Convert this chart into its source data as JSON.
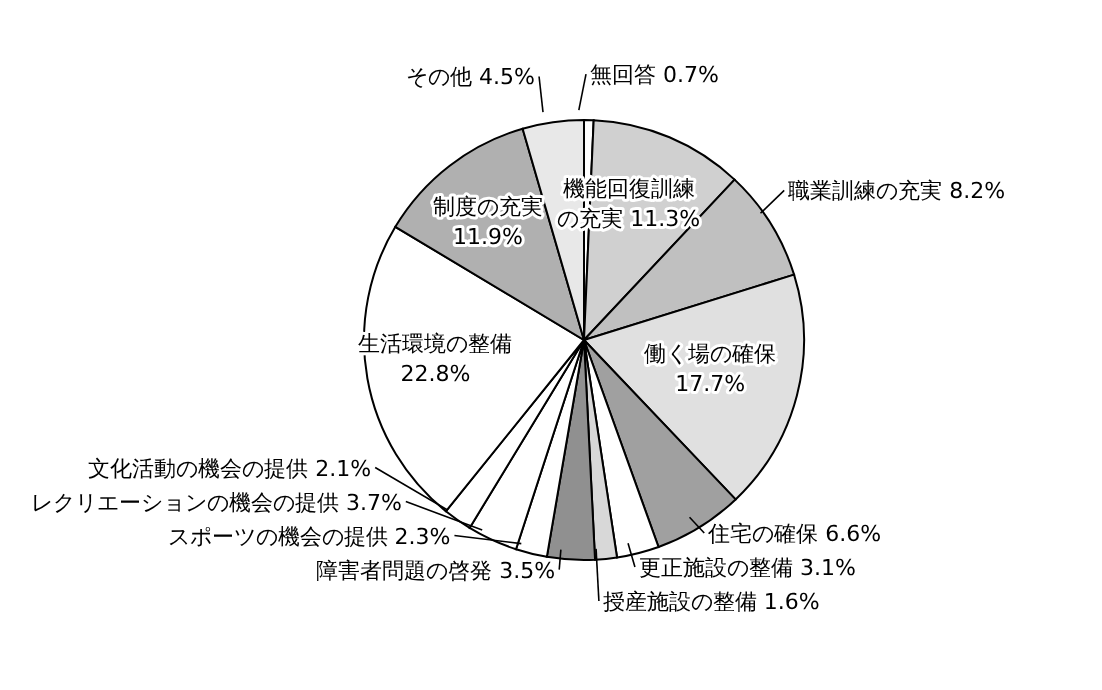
{
  "chart_data": {
    "type": "pie",
    "categories": [
      "無回答",
      "機能回復訓練の充実",
      "職業訓練の充実",
      "働く場の確保",
      "住宅の確保",
      "更正施設の整備",
      "授産施設の整備",
      "障害者問題の啓発",
      "スポーツの機会の提供",
      "レクリエーションの機会の提供",
      "文化活動の機会の提供",
      "生活環境の整備",
      "制度の充実",
      "その他"
    ],
    "values": [
      0.7,
      11.3,
      8.2,
      17.7,
      6.6,
      3.1,
      1.6,
      3.5,
      2.3,
      3.7,
      2.1,
      22.8,
      11.9,
      4.5
    ],
    "value_labels": [
      "0.7%",
      "11.3%",
      "8.2%",
      "17.7%",
      "6.6%",
      "3.1%",
      "1.6%",
      "3.5%",
      "2.3%",
      "3.7%",
      "2.1%",
      "22.8%",
      "11.9%",
      "4.5%"
    ],
    "colors": [
      "#ffffff",
      "#d0d0d0",
      "#c0c0c0",
      "#e0e0e0",
      "#a0a0a0",
      "#ffffff",
      "#d8d8d8",
      "#909090",
      "#ffffff",
      "#ffffff",
      "#ffffff",
      "#ffffff",
      "#b0b0b0",
      "#e8e8e8"
    ],
    "legend": false
  }
}
